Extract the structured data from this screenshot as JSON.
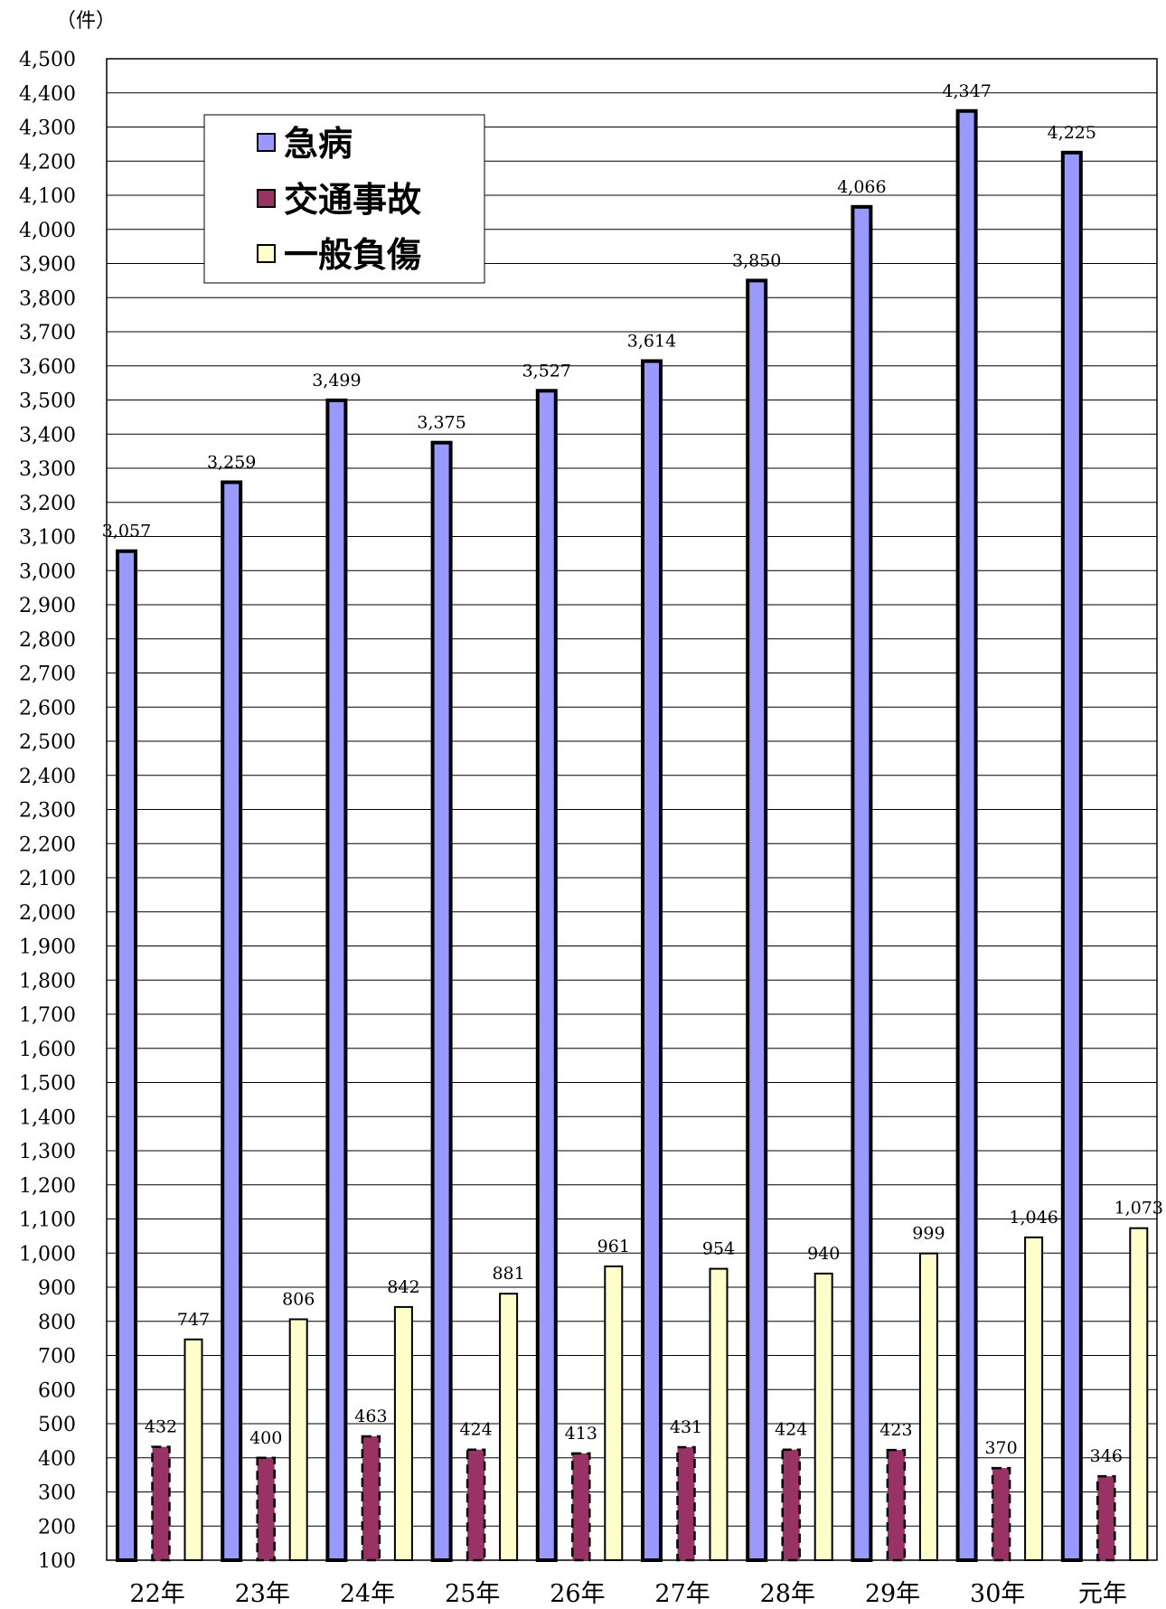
{
  "chart_data": {
    "type": "bar",
    "unit_label": "（件）",
    "categories": [
      "22年",
      "23年",
      "24年",
      "25年",
      "26年",
      "27年",
      "28年",
      "29年",
      "30年",
      "元年"
    ],
    "series": [
      {
        "name": "急病",
        "color": "#9999ff",
        "values": [
          3057,
          3259,
          3499,
          3375,
          3527,
          3614,
          3850,
          4066,
          4347,
          4225
        ],
        "labels": [
          "3,057",
          "3,259",
          "3,499",
          "3,375",
          "3,527",
          "3,614",
          "3,850",
          "4,066",
          "4,347",
          "4,225"
        ]
      },
      {
        "name": "交通事故",
        "color": "#993366",
        "values": [
          432,
          400,
          463,
          424,
          413,
          431,
          424,
          423,
          370,
          346
        ],
        "labels": [
          "432",
          "400",
          "463",
          "424",
          "413",
          "431",
          "424",
          "423",
          "370",
          "346"
        ]
      },
      {
        "name": "一般負傷",
        "color": "#ffffcc",
        "values": [
          747,
          806,
          842,
          881,
          961,
          954,
          940,
          999,
          1046,
          1073
        ],
        "labels": [
          "747",
          "806",
          "842",
          "881",
          "961",
          "954",
          "940",
          "999",
          "1,046",
          "1,073"
        ]
      }
    ],
    "ylim": [
      100,
      4500
    ],
    "ytick_step": 100,
    "grid": true,
    "legend_position": "top-left"
  }
}
